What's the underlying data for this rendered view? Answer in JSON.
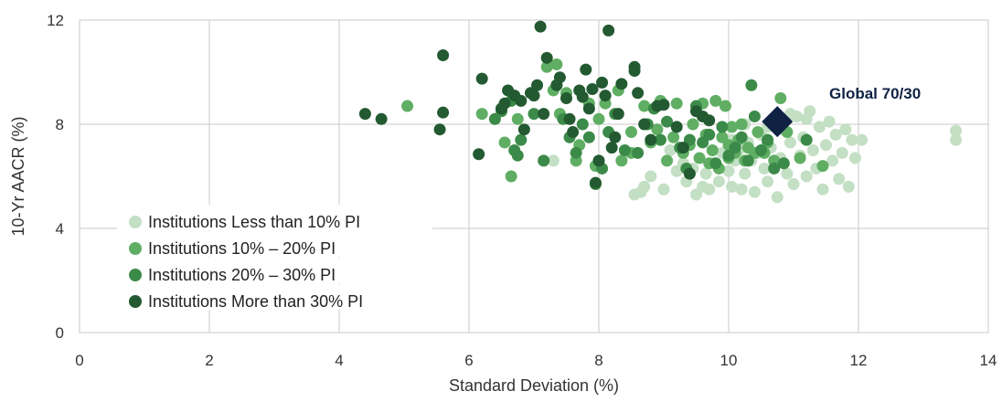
{
  "chart_data": {
    "type": "scatter",
    "title": "",
    "xlabel": "Standard Deviation (%)",
    "ylabel": "10-Yr AACR (%)",
    "xlim": [
      0,
      14
    ],
    "ylim": [
      0,
      12
    ],
    "xticks": [
      "0",
      "2",
      "4",
      "6",
      "8",
      "10",
      "12",
      "14"
    ],
    "yticks": [
      "0",
      "4",
      "8",
      "12"
    ],
    "grid": true,
    "legend_position": "bottom-left",
    "series": [
      {
        "name": "Institutions Less than 10% PI",
        "color": "#c3dfc4",
        "points": [
          [
            7.3,
            6.6
          ],
          [
            8.55,
            5.3
          ],
          [
            8.65,
            5.4
          ],
          [
            8.7,
            5.6
          ],
          [
            8.8,
            6.0
          ],
          [
            9.0,
            5.5
          ],
          [
            9.2,
            6.2
          ],
          [
            9.35,
            5.8
          ],
          [
            9.45,
            6.3
          ],
          [
            9.5,
            5.3
          ],
          [
            9.6,
            5.6
          ],
          [
            9.65,
            6.1
          ],
          [
            9.7,
            5.5
          ],
          [
            9.75,
            6.5
          ],
          [
            9.85,
            5.8
          ],
          [
            9.9,
            6.9
          ],
          [
            10.0,
            6.2
          ],
          [
            10.05,
            5.6
          ],
          [
            10.1,
            6.6
          ],
          [
            10.15,
            7.0
          ],
          [
            10.2,
            5.5
          ],
          [
            10.25,
            6.1
          ],
          [
            10.3,
            7.3
          ],
          [
            10.35,
            6.6
          ],
          [
            10.4,
            5.4
          ],
          [
            10.45,
            6.9
          ],
          [
            10.5,
            7.6
          ],
          [
            10.55,
            6.3
          ],
          [
            10.6,
            5.8
          ],
          [
            10.65,
            7.1
          ],
          [
            10.75,
            5.2
          ],
          [
            10.8,
            6.7
          ],
          [
            10.85,
            7.8
          ],
          [
            10.9,
            6.1
          ],
          [
            10.95,
            7.3
          ],
          [
            11.0,
            5.7
          ],
          [
            11.05,
            8.3
          ],
          [
            11.1,
            6.8
          ],
          [
            11.15,
            7.5
          ],
          [
            11.2,
            6.0
          ],
          [
            11.25,
            8.5
          ],
          [
            11.3,
            7.0
          ],
          [
            11.35,
            6.3
          ],
          [
            11.4,
            7.9
          ],
          [
            11.45,
            5.5
          ],
          [
            11.5,
            7.2
          ],
          [
            11.55,
            8.1
          ],
          [
            11.6,
            6.6
          ],
          [
            11.65,
            7.6
          ],
          [
            11.7,
            5.9
          ],
          [
            11.75,
            6.9
          ],
          [
            11.8,
            7.8
          ],
          [
            11.85,
            5.6
          ],
          [
            11.9,
            7.4
          ],
          [
            11.95,
            6.7
          ],
          [
            12.05,
            7.4
          ],
          [
            13.5,
            7.75
          ],
          [
            13.5,
            7.4
          ],
          [
            9.1,
            7.0
          ],
          [
            9.3,
            6.5
          ],
          [
            10.05,
            7.4
          ],
          [
            10.25,
            8.0
          ],
          [
            10.6,
            7.9
          ],
          [
            10.95,
            8.4
          ],
          [
            11.2,
            8.2
          ]
        ]
      },
      {
        "name": "Institutions 10% – 20% PI",
        "color": "#5fae63",
        "points": [
          [
            5.05,
            8.7
          ],
          [
            6.2,
            8.4
          ],
          [
            6.55,
            7.3
          ],
          [
            6.65,
            6.0
          ],
          [
            6.75,
            8.2
          ],
          [
            7.2,
            10.2
          ],
          [
            7.3,
            9.3
          ],
          [
            7.35,
            10.3
          ],
          [
            7.4,
            8.4
          ],
          [
            7.5,
            9.2
          ],
          [
            7.65,
            6.6
          ],
          [
            7.7,
            7.2
          ],
          [
            7.85,
            8.8
          ],
          [
            7.95,
            6.4
          ],
          [
            8.0,
            8.2
          ],
          [
            8.1,
            8.8
          ],
          [
            8.3,
            9.3
          ],
          [
            8.35,
            6.6
          ],
          [
            8.5,
            7.7
          ],
          [
            8.7,
            8.7
          ],
          [
            8.8,
            7.3
          ],
          [
            8.9,
            7.8
          ],
          [
            8.95,
            8.9
          ],
          [
            9.05,
            6.6
          ],
          [
            9.15,
            7.5
          ],
          [
            9.2,
            8.8
          ],
          [
            9.3,
            6.9
          ],
          [
            9.4,
            7.2
          ],
          [
            9.45,
            8.0
          ],
          [
            9.55,
            6.7
          ],
          [
            9.6,
            8.8
          ],
          [
            9.65,
            7.6
          ],
          [
            9.75,
            7.0
          ],
          [
            9.8,
            8.9
          ],
          [
            9.85,
            6.3
          ],
          [
            9.9,
            7.5
          ],
          [
            9.95,
            8.7
          ],
          [
            10.0,
            6.7
          ],
          [
            10.05,
            7.9
          ],
          [
            10.1,
            6.9
          ],
          [
            10.15,
            7.4
          ],
          [
            10.2,
            8.0
          ],
          [
            10.25,
            6.6
          ],
          [
            10.3,
            7.1
          ],
          [
            10.4,
            6.9
          ],
          [
            10.45,
            7.7
          ],
          [
            10.55,
            6.9
          ],
          [
            10.6,
            7.3
          ],
          [
            10.7,
            6.6
          ],
          [
            10.8,
            9.0
          ],
          [
            10.9,
            7.7
          ],
          [
            11.1,
            6.7
          ],
          [
            11.45,
            6.4
          ],
          [
            8.5,
            6.9
          ],
          [
            9.7,
            6.5
          ],
          [
            10.0,
            7.2
          ]
        ]
      },
      {
        "name": "Institutions 20% – 30% PI",
        "color": "#3c8a49",
        "points": [
          [
            6.4,
            8.2
          ],
          [
            6.5,
            8.5
          ],
          [
            6.65,
            8.9
          ],
          [
            6.7,
            7.0
          ],
          [
            6.75,
            6.8
          ],
          [
            6.8,
            7.4
          ],
          [
            7.0,
            8.4
          ],
          [
            7.15,
            6.6
          ],
          [
            7.35,
            9.5
          ],
          [
            7.45,
            8.2
          ],
          [
            7.55,
            7.5
          ],
          [
            7.65,
            6.9
          ],
          [
            7.75,
            8.0
          ],
          [
            7.85,
            7.5
          ],
          [
            7.95,
            5.7
          ],
          [
            8.05,
            6.3
          ],
          [
            8.15,
            7.7
          ],
          [
            8.25,
            8.4
          ],
          [
            8.4,
            7.0
          ],
          [
            8.6,
            6.9
          ],
          [
            8.75,
            8.0
          ],
          [
            8.85,
            8.6
          ],
          [
            8.95,
            7.4
          ],
          [
            9.05,
            8.1
          ],
          [
            9.25,
            7.1
          ],
          [
            9.4,
            7.4
          ],
          [
            9.5,
            8.7
          ],
          [
            9.6,
            7.3
          ],
          [
            9.7,
            7.6
          ],
          [
            9.8,
            6.5
          ],
          [
            9.9,
            7.9
          ],
          [
            10.0,
            6.8
          ],
          [
            10.1,
            7.1
          ],
          [
            10.2,
            7.5
          ],
          [
            10.3,
            6.6
          ],
          [
            10.4,
            8.3
          ],
          [
            10.35,
            9.5
          ],
          [
            10.5,
            7.0
          ],
          [
            10.6,
            7.4
          ],
          [
            10.7,
            6.3
          ],
          [
            11.2,
            7.4
          ],
          [
            9.35,
            6.3
          ],
          [
            10.85,
            6.5
          ]
        ]
      },
      {
        "name": "Institutions More than 30% PI",
        "color": "#235a31",
        "points": [
          [
            4.4,
            8.4
          ],
          [
            4.65,
            8.2
          ],
          [
            5.55,
            7.8
          ],
          [
            5.6,
            8.45
          ],
          [
            5.6,
            10.65
          ],
          [
            6.15,
            6.85
          ],
          [
            6.2,
            9.75
          ],
          [
            6.5,
            8.6
          ],
          [
            6.55,
            8.8
          ],
          [
            6.6,
            9.3
          ],
          [
            6.7,
            9.1
          ],
          [
            6.8,
            8.9
          ],
          [
            6.85,
            7.8
          ],
          [
            6.95,
            9.2
          ],
          [
            7.0,
            9.1
          ],
          [
            7.05,
            9.5
          ],
          [
            7.1,
            11.75
          ],
          [
            7.15,
            8.4
          ],
          [
            7.2,
            10.55
          ],
          [
            7.35,
            9.5
          ],
          [
            7.4,
            9.8
          ],
          [
            7.5,
            9.0
          ],
          [
            7.55,
            8.2
          ],
          [
            7.6,
            7.7
          ],
          [
            7.7,
            9.3
          ],
          [
            7.75,
            9.05
          ],
          [
            7.8,
            10.1
          ],
          [
            7.85,
            8.6
          ],
          [
            7.9,
            9.35
          ],
          [
            8.0,
            6.6
          ],
          [
            8.05,
            9.6
          ],
          [
            8.1,
            9.1
          ],
          [
            8.15,
            11.6
          ],
          [
            8.2,
            7.1
          ],
          [
            8.25,
            7.5
          ],
          [
            8.3,
            8.4
          ],
          [
            8.35,
            9.55
          ],
          [
            8.55,
            10.2
          ],
          [
            8.55,
            10.05
          ],
          [
            8.6,
            9.2
          ],
          [
            8.7,
            8.0
          ],
          [
            8.8,
            7.4
          ],
          [
            8.9,
            8.7
          ],
          [
            9.0,
            8.75
          ],
          [
            9.2,
            7.9
          ],
          [
            9.3,
            7.1
          ],
          [
            9.4,
            6.1
          ],
          [
            9.5,
            8.5
          ],
          [
            9.6,
            8.3
          ],
          [
            9.7,
            8.15
          ],
          [
            7.95,
            5.75
          ]
        ]
      }
    ],
    "annotations": [
      {
        "label": "Global 70/30",
        "x": 10.75,
        "y": 8.1,
        "marker": "diamond",
        "color": "#0f2244"
      }
    ]
  }
}
